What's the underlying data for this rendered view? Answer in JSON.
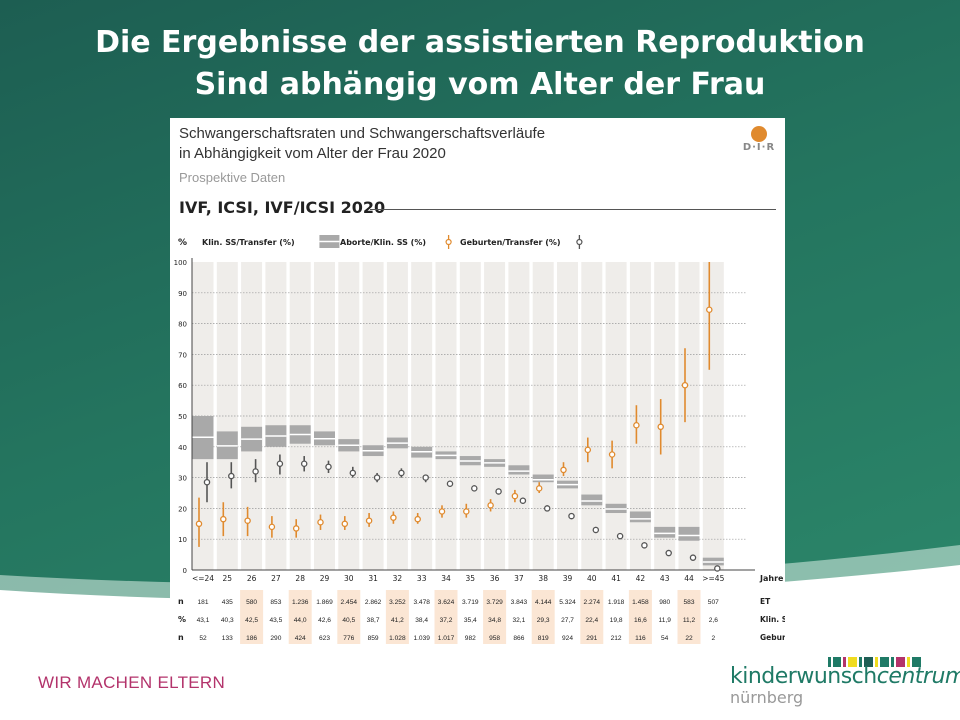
{
  "slide": {
    "title_line1": "Die Ergebnisse der assistierten Reproduktion",
    "title_line2": "Sind abhängig vom Alter der Frau",
    "tagline": "WIR MACHEN ELTERN",
    "logo_main": "kinderwunsch",
    "logo_italic": "centrum",
    "logo_city": "nürnberg",
    "colors": {
      "background": "#24755f",
      "accent": "#b3336b",
      "brand": "#1f7a66"
    }
  },
  "card": {
    "title_line1": "Schwangerschaftsraten und Schwangerschaftsverläufe",
    "title_line2": "in Abhängigkeit vom Alter der Frau 2020",
    "subtitle": "Prospektive Daten",
    "section": "IVF, ICSI, IVF/ICSI 2020",
    "logo_text": "D·I·R"
  },
  "chart_data": {
    "type": "scatter",
    "ylabel": "%",
    "xlabel": "Jahre",
    "ylim": [
      0,
      100
    ],
    "yticks": [
      0,
      10,
      20,
      30,
      40,
      50,
      60,
      70,
      80,
      90,
      100
    ],
    "grid": true,
    "legend_placement": "top",
    "categories": [
      "<=24",
      "25",
      "26",
      "27",
      "28",
      "29",
      "30",
      "31",
      "32",
      "33",
      "34",
      "35",
      "36",
      "37",
      "38",
      "39",
      "40",
      "41",
      "42",
      "43",
      "44",
      ">=45"
    ],
    "series": [
      {
        "name": "Klin. SS/Transfer (%)",
        "style": "box",
        "color": "#a9a9a9",
        "values": [
          43.1,
          40.3,
          42.5,
          43.5,
          44.0,
          42.6,
          40.5,
          38.7,
          41.2,
          38.4,
          37.2,
          35.4,
          34.8,
          32.1,
          29.3,
          27.7,
          22.4,
          19.8,
          16.6,
          11.9,
          11.2,
          2.6
        ],
        "low": [
          36,
          36,
          38.5,
          40,
          41,
          40.5,
          38.5,
          37,
          39.5,
          36.5,
          36,
          34,
          33.5,
          31,
          28.5,
          26.5,
          21,
          18.5,
          15.5,
          10.5,
          9.5,
          1.5
        ],
        "high": [
          50,
          45,
          46.5,
          47,
          47,
          45,
          42.5,
          40.5,
          43,
          40,
          38.5,
          37,
          36,
          34,
          31,
          29,
          24.5,
          21.5,
          19,
          14,
          14,
          4
        ]
      },
      {
        "name": "Aborte/Klin. SS (%)",
        "style": "point-ci",
        "color": "#e08a2e",
        "values": [
          15,
          16.5,
          16,
          14,
          13.5,
          15.5,
          15,
          16,
          17,
          16.5,
          19,
          19,
          21,
          24,
          26.5,
          32.5,
          39,
          37.5,
          47,
          46.5,
          60,
          84.5
        ],
        "low": [
          7.5,
          11,
          11,
          10.5,
          10.5,
          13,
          13,
          14,
          15,
          15,
          17,
          17,
          19,
          22,
          25,
          30.5,
          35,
          33,
          41,
          37.5,
          48,
          65
        ],
        "high": [
          23.5,
          22,
          20.5,
          17.5,
          16.5,
          18,
          17.5,
          18.5,
          19,
          18.5,
          21,
          21.5,
          23,
          26,
          28.5,
          35,
          43,
          42,
          53.5,
          55.5,
          72,
          100
        ]
      },
      {
        "name": "Geburten/Transfer (%)",
        "style": "point-ci",
        "color": "#555555",
        "values": [
          28.5,
          30.5,
          32,
          34.5,
          34.5,
          33.5,
          31.5,
          30,
          31.5,
          30,
          28,
          26.5,
          25.5,
          22.5,
          20,
          17.5,
          13,
          11,
          8,
          5.5,
          4,
          0.5
        ],
        "low": [
          22,
          26.5,
          28.5,
          31,
          32,
          31.5,
          30,
          28.5,
          30,
          28.5,
          27,
          25.5,
          24.5,
          21.5,
          19,
          16.5,
          12,
          10,
          7,
          4.5,
          3,
          0
        ],
        "high": [
          35,
          35,
          36,
          37.5,
          37,
          35.5,
          33.5,
          31.5,
          33,
          31,
          29,
          27.5,
          26.5,
          23.5,
          21,
          18.5,
          14,
          12,
          9,
          6.5,
          5,
          1.5
        ]
      }
    ],
    "table": {
      "rows": [
        {
          "label": "n",
          "suffix": "ET",
          "values": [
            "181",
            "435",
            "580",
            "853",
            "1.236",
            "1.869",
            "2.454",
            "2.862",
            "3.252",
            "3.478",
            "3.624",
            "3.719",
            "3.729",
            "3.843",
            "4.144",
            "5.324",
            "2.274",
            "1.918",
            "1.458",
            "980",
            "583",
            "507"
          ]
        },
        {
          "label": "%",
          "suffix": "Klin. SS/ET",
          "values": [
            "43,1",
            "40,3",
            "42,5",
            "43,5",
            "44,0",
            "42,6",
            "40,5",
            "38,7",
            "41,2",
            "38,4",
            "37,2",
            "35,4",
            "34,8",
            "32,1",
            "29,3",
            "27,7",
            "22,4",
            "19,8",
            "16,6",
            "11,9",
            "11,2",
            "2,6"
          ]
        },
        {
          "label": "n",
          "suffix": "Geburten",
          "values": [
            "52",
            "133",
            "186",
            "290",
            "424",
            "623",
            "776",
            "859",
            "1.028",
            "1.039",
            "1.017",
            "982",
            "958",
            "866",
            "819",
            "924",
            "291",
            "212",
            "116",
            "54",
            "22",
            "2"
          ]
        }
      ],
      "highlight_color": "#fbe6d4"
    }
  }
}
